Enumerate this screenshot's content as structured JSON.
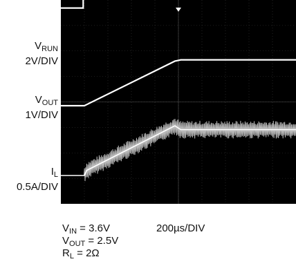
{
  "chart_data": {
    "type": "line",
    "title": "",
    "x_unit": "200µs/DIV",
    "channels": [
      {
        "id": "run",
        "label_main": "V",
        "label_sub": "RUN",
        "scale": "2V/DIV",
        "color": "#ffffff",
        "points_div": [
          [
            -0.1,
            1.8
          ],
          [
            0.95,
            1.8
          ],
          [
            0.95,
            3.5
          ],
          [
            10,
            3.5
          ]
        ]
      },
      {
        "id": "vout",
        "label_main": "V",
        "label_sub": "OUT",
        "scale": "1V/DIV",
        "color": "#ffffff",
        "points_div": [
          [
            -0.1,
            0.0
          ],
          [
            1.0,
            0.0
          ],
          [
            4.85,
            1.75
          ],
          [
            5.1,
            1.8
          ],
          [
            10,
            1.8
          ]
        ]
      },
      {
        "id": "il",
        "label_main": "I",
        "label_sub": "L",
        "scale": "0.5A/DIV",
        "color": "#d8d8d8",
        "points_div": [
          [
            -0.1,
            0.0
          ],
          [
            1.0,
            0.0
          ],
          [
            1.1,
            0.2
          ],
          [
            4.85,
            1.95
          ],
          [
            5.1,
            1.8
          ],
          [
            10,
            1.8
          ]
        ],
        "ripple_div": 0.35
      }
    ],
    "conditions": [
      {
        "main": "V",
        "sub": "IN",
        "rest": " = 3.6V"
      },
      {
        "main": "V",
        "sub": "OUT",
        "rest": " = 2.5V"
      },
      {
        "main": "R",
        "sub": "L",
        "rest": " = 2Ω"
      }
    ],
    "grid": true,
    "divisions": {
      "x": 10,
      "y": 8
    }
  }
}
